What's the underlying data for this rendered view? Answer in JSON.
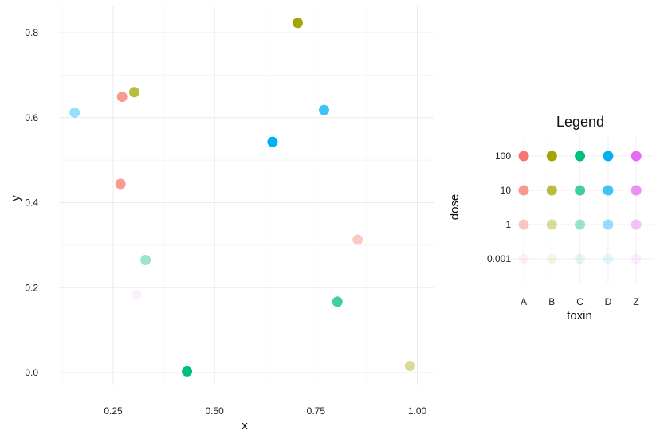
{
  "chart_data": {
    "type": "scatter",
    "xlabel": "x",
    "ylabel": "y",
    "xlim": [
      0.12,
      1.02
    ],
    "ylim": [
      -0.03,
      0.87
    ],
    "x_ticks": [
      "0.25",
      "0.50",
      "0.75",
      "1.00"
    ],
    "x_tick_values": [
      0.25,
      0.5,
      0.75,
      1.0
    ],
    "y_ticks": [
      "0.0",
      "0.2",
      "0.4",
      "0.6",
      "0.8"
    ],
    "y_tick_values": [
      0.0,
      0.2,
      0.4,
      0.6,
      0.8
    ],
    "grid": true,
    "points": [
      {
        "x": 0.155,
        "y": 0.612,
        "toxin": "D",
        "dose": "1"
      },
      {
        "x": 0.272,
        "y": 0.649,
        "toxin": "A",
        "dose": "10"
      },
      {
        "x": 0.302,
        "y": 0.66,
        "toxin": "B",
        "dose": "10"
      },
      {
        "x": 0.268,
        "y": 0.444,
        "toxin": "A",
        "dose": "10"
      },
      {
        "x": 0.33,
        "y": 0.265,
        "toxin": "C",
        "dose": "1"
      },
      {
        "x": 0.307,
        "y": 0.183,
        "toxin": "Z",
        "dose": "0.001"
      },
      {
        "x": 0.432,
        "y": 0.003,
        "toxin": "C",
        "dose": "100"
      },
      {
        "x": 0.643,
        "y": 0.543,
        "toxin": "D",
        "dose": "100"
      },
      {
        "x": 0.705,
        "y": 0.823,
        "toxin": "B",
        "dose": "100"
      },
      {
        "x": 0.77,
        "y": 0.618,
        "toxin": "D",
        "dose": "10"
      },
      {
        "x": 0.803,
        "y": 0.167,
        "toxin": "C",
        "dose": "10"
      },
      {
        "x": 0.853,
        "y": 0.313,
        "toxin": "A",
        "dose": "1"
      },
      {
        "x": 0.982,
        "y": 0.016,
        "toxin": "B",
        "dose": "1"
      }
    ],
    "legend": {
      "title": "Legend",
      "placement": "right",
      "xlabel": "toxin",
      "ylabel": "dose",
      "toxins": [
        "A",
        "B",
        "C",
        "D",
        "Z"
      ],
      "doses": [
        "100",
        "10",
        "1",
        "0.001"
      ]
    },
    "colors": {
      "A": "#f8766d",
      "B": "#a3a500",
      "C": "#00bf7d",
      "D": "#00b0f6",
      "Z": "#e76bf3"
    },
    "dose_opacity": {
      "100": 1.0,
      "10": 0.75,
      "1": 0.4,
      "0.001": 0.1
    }
  }
}
